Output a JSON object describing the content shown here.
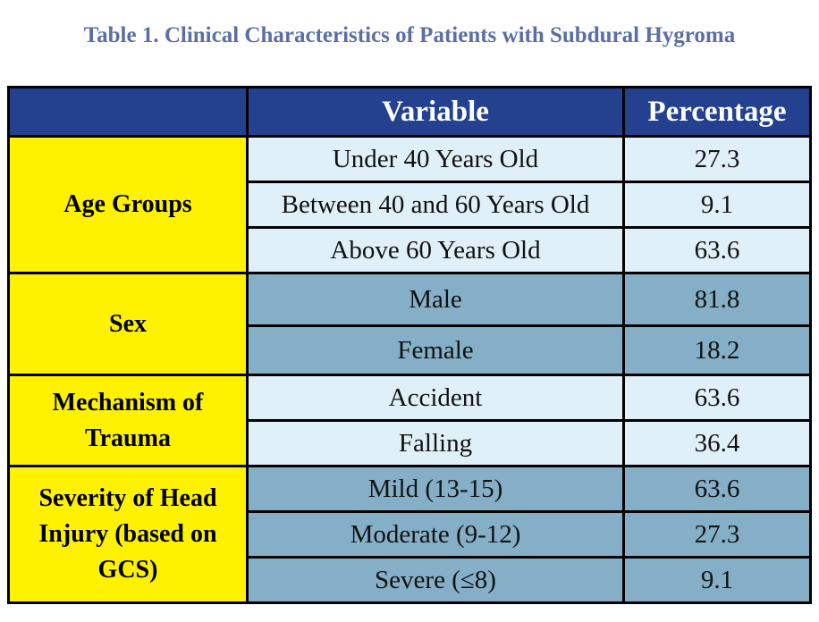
{
  "title": "Table 1. Clinical Characteristics of Patients with Subdural Hygroma",
  "headers": {
    "group": "",
    "variable": "Variable",
    "percentage": "Percentage"
  },
  "rows": [
    {
      "group": "Age Groups",
      "variable": "Under 40 Years Old",
      "percentage": "27.3"
    },
    {
      "variable": "Between 40 and 60 Years Old",
      "percentage": "9.1"
    },
    {
      "variable": "Above 60 Years Old",
      "percentage": "63.6"
    },
    {
      "group": "Sex",
      "variable": "Male",
      "percentage": "81.8"
    },
    {
      "variable": "Female",
      "percentage": "18.2"
    },
    {
      "group": "Mechanism of Trauma",
      "variable": "Accident",
      "percentage": "63.6"
    },
    {
      "variable": "Falling",
      "percentage": "36.4"
    },
    {
      "group": "Severity of Head Injury (based on GCS)",
      "variable": "Mild (13-15)",
      "percentage": "63.6"
    },
    {
      "variable": "Moderate (9-12)",
      "percentage": "27.3"
    },
    {
      "variable": "Severe (≤8)",
      "percentage": "9.1"
    }
  ]
}
